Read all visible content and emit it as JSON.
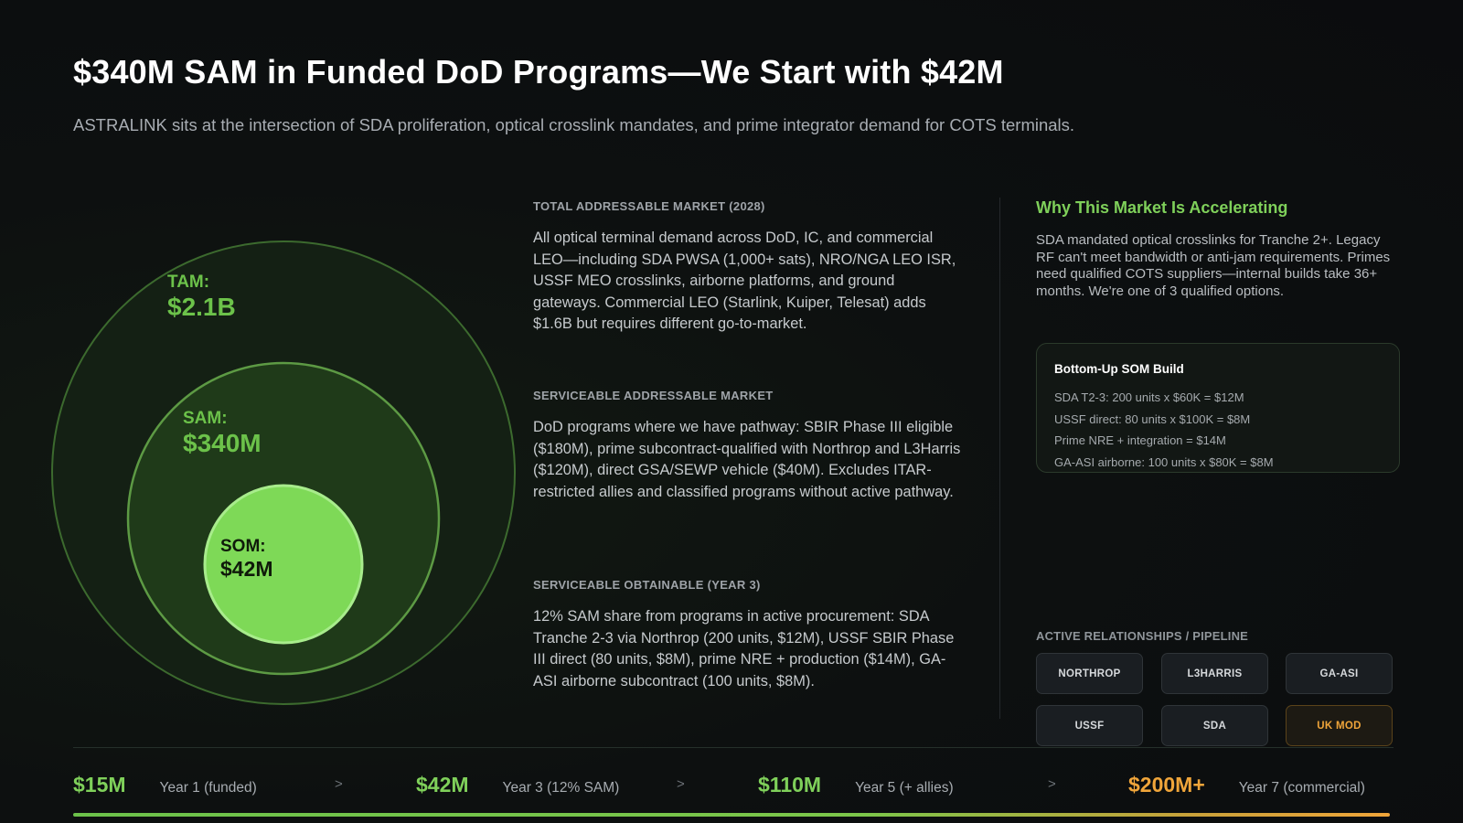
{
  "header": {
    "title": "$340M SAM in Funded DoD Programs—We Start with $42M",
    "subtitle": "ASTRALINK sits at the intersection of SDA proliferation, optical crosslink mandates, and prime integrator demand for COTS terminals."
  },
  "market_circles": {
    "tam": {
      "key": "TAM:",
      "value": "$2.1B"
    },
    "sam": {
      "key": "SAM:",
      "value": "$340M"
    },
    "som": {
      "key": "SOM:",
      "value": "$42M"
    }
  },
  "sections": [
    {
      "heading": "TOTAL ADDRESSABLE MARKET (2028)",
      "body": "All optical terminal demand across DoD, IC, and commercial LEO—including SDA PWSA (1,000+ sats), NRO/NGA LEO ISR, USSF MEO crosslinks, airborne platforms, and ground gateways. Commercial LEO (Starlink, Kuiper, Telesat) adds $1.6B but requires different go-to-market."
    },
    {
      "heading": "SERVICEABLE ADDRESSABLE MARKET",
      "body": "DoD programs where we have pathway: SBIR Phase III eligible ($180M), prime subcontract-qualified with Northrop and L3Harris ($120M), direct GSA/SEWP vehicle ($40M). Excludes ITAR-restricted allies and classified programs without active pathway."
    },
    {
      "heading": "SERVICEABLE OBTAINABLE (YEAR 3)",
      "body": "12% SAM share from programs in active procurement: SDA Tranche 2-3 via Northrop (200 units, $12M), USSF SBIR Phase III direct (80 units, $8M), prime NRE + production ($14M), GA-ASI airborne subcontract (100 units, $8M)."
    }
  ],
  "why": {
    "heading": "Why This Market Is Accelerating",
    "body": "SDA mandated optical crosslinks for Tranche 2+. Legacy RF can't meet bandwidth or anti-jam requirements. Primes need qualified COTS suppliers—internal builds take 36+ months. We're one of 3 qualified options."
  },
  "som_build": {
    "heading": "Bottom-Up SOM Build",
    "items": [
      "SDA T2-3: 200 units x $60K = $12M",
      "USSF direct: 80 units x $100K = $8M",
      "Prime NRE + integration = $14M",
      "GA-ASI airborne: 100 units x $80K = $8M"
    ]
  },
  "pipeline": {
    "heading": "ACTIVE RELATIONSHIPS / PIPELINE",
    "chips": [
      "NORTHROP",
      "L3HARRIS",
      "GA-ASI",
      "USSF",
      "SDA",
      "UK MOD"
    ]
  },
  "timeline": {
    "arrow": ">",
    "steps": [
      {
        "value": "$15M",
        "label": "Year 1 (funded)"
      },
      {
        "value": "$42M",
        "label": "Year 3 (12% SAM)"
      },
      {
        "value": "$110M",
        "label": "Year 5 (+ allies)"
      },
      {
        "value": "$200M+",
        "label": "Year 7 (commercial)"
      }
    ]
  },
  "colors": {
    "accent_green": "#7fd05a",
    "accent_orange": "#f0a53a",
    "background": "#0c0e10"
  }
}
